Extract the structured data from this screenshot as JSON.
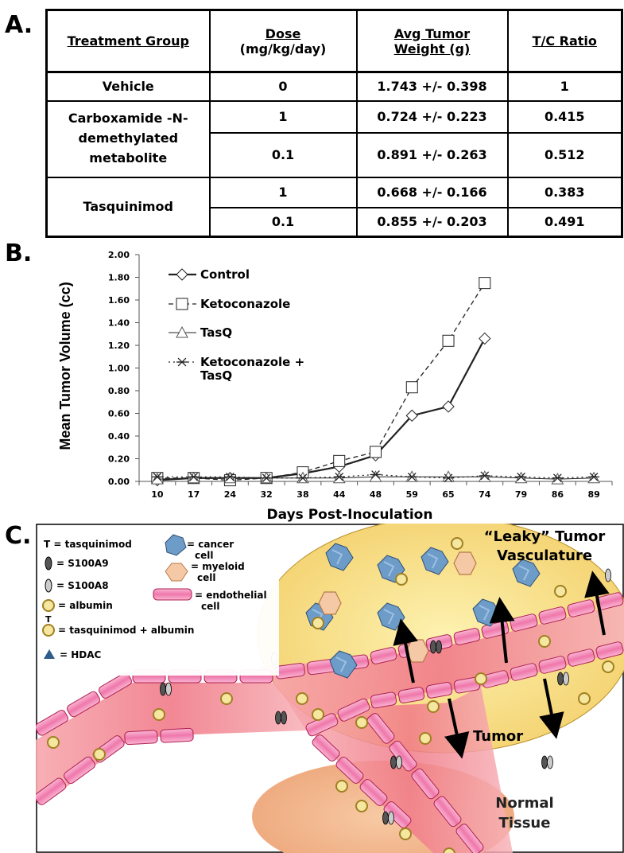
{
  "panels": {
    "a": "A.",
    "b": "B.",
    "c": "C."
  },
  "table": {
    "headers": {
      "group": "Treatment Group",
      "dose": [
        "Dose",
        "(mg/kg/day)"
      ],
      "weight": [
        "Avg Tumor",
        "Weight (g)"
      ],
      "ratio": "T/C Ratio"
    },
    "groups": {
      "vehicle": "Vehicle",
      "carboxamide": [
        "Carboxamide -N-",
        "demethylated",
        "metabolite"
      ],
      "tasquinimod": "Tasquinimod"
    },
    "rows": [
      {
        "dose": "0",
        "weight": "1.743 +/- 0.398",
        "ratio": "1"
      },
      {
        "dose": "1",
        "weight": "0.724 +/- 0.223",
        "ratio": "0.415"
      },
      {
        "dose": "0.1",
        "weight": "0.891 +/- 0.263",
        "ratio": "0.512"
      },
      {
        "dose": "1",
        "weight": "0.668 +/- 0.166",
        "ratio": "0.383"
      },
      {
        "dose": "0.1",
        "weight": "0.855 +/- 0.203",
        "ratio": "0.491"
      }
    ]
  },
  "chart_data": {
    "type": "line",
    "xlabel": "Days Post-Inoculation",
    "ylabel": "Mean Tumor Volume (cc)",
    "categories": [
      "10",
      "17",
      "24",
      "32",
      "38",
      "44",
      "48",
      "59",
      "65",
      "74",
      "79",
      "86",
      "89"
    ],
    "ylim": [
      0,
      2.0
    ],
    "yticks": [
      "0.00",
      "0.20",
      "0.40",
      "0.60",
      "0.80",
      "1.00",
      "1.20",
      "1.40",
      "1.60",
      "1.80",
      "2.00"
    ],
    "legend_position": "top-left",
    "grid": false,
    "series": [
      {
        "name": "Control",
        "marker": "diamond",
        "dash": "solid",
        "values": [
          0.01,
          0.03,
          0.03,
          0.03,
          0.07,
          0.13,
          0.23,
          0.58,
          0.66,
          1.26,
          null,
          null,
          null
        ]
      },
      {
        "name": "Ketoconazole",
        "marker": "square",
        "dash": "dashed",
        "values": [
          0.03,
          0.03,
          0.01,
          0.03,
          0.08,
          0.18,
          0.26,
          0.83,
          1.24,
          1.75,
          null,
          null,
          null
        ]
      },
      {
        "name": "TasQ",
        "marker": "triangle",
        "dash": "solid-thin",
        "values": [
          0.02,
          0.03,
          0.03,
          0.03,
          0.03,
          0.03,
          0.04,
          0.04,
          0.04,
          0.04,
          0.03,
          0.02,
          0.03
        ]
      },
      {
        "name": "Ketoconazole + TasQ",
        "legend_lines": [
          "Ketoconazole +",
          "TasQ"
        ],
        "marker": "star",
        "dash": "dash-dot",
        "values": [
          0.04,
          0.04,
          0.04,
          0.03,
          0.03,
          0.04,
          0.06,
          0.04,
          0.03,
          0.05,
          0.04,
          0.03,
          0.04
        ]
      }
    ]
  },
  "diagram": {
    "legend": {
      "tasquinimod": "T = tasquinimod",
      "s100a9": "= S100A9",
      "s100a8": "= S100A8",
      "albumin": "= albumin",
      "tasq_albumin": "= tasquinimod + albumin",
      "hdac": "= HDAC",
      "cancer": [
        "= cancer",
        "cell"
      ],
      "myeloid": [
        "= myeloid",
        "cell"
      ],
      "endothelial": [
        "= endothelial",
        "cell"
      ]
    },
    "labels": {
      "leaky": [
        "“Leaky” Tumor",
        "Vasculature"
      ],
      "tumor": "Tumor",
      "normal": [
        "Normal",
        "Tissue"
      ]
    },
    "colors": {
      "tumor_fill": "#fbe08a",
      "vessel": "#f28a9c",
      "endothelial": "#f07fb0",
      "normal_tissue": "#f2b485",
      "cancer_cell": "#6e9cc9",
      "myeloid": "#f5c9a6",
      "albumin": "#f5e6a0"
    }
  }
}
